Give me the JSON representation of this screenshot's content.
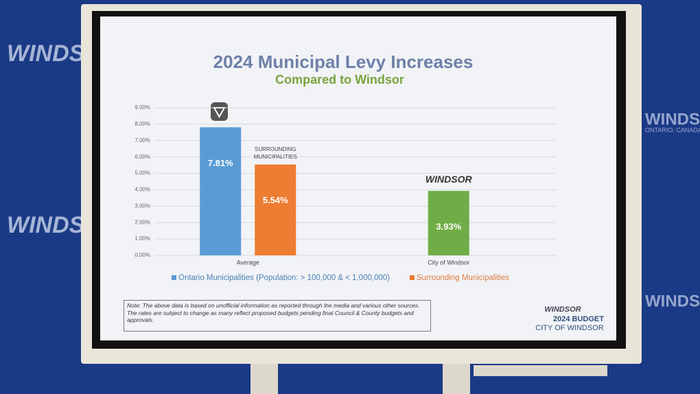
{
  "chart_data": {
    "type": "bar",
    "title": "2024 Municipal Levy Increases",
    "subtitle": "Compared to Windsor",
    "categories": [
      "Average",
      "City of Windsor"
    ],
    "series": [
      {
        "name": "Ontario Municipalities (Population: > 100,000 & < 1,000,000)",
        "color": "#5b9bd5",
        "values": [
          7.81,
          null
        ],
        "value_labels": [
          "7.81%",
          null
        ]
      },
      {
        "name": "Surrounding Municipalities",
        "color": "#ed7d31",
        "values": [
          5.54,
          null
        ],
        "value_labels": [
          "5.54%",
          null
        ]
      },
      {
        "color": "#70ad47",
        "values": [
          null,
          3.93
        ],
        "value_labels": [
          null,
          "3.93%"
        ]
      }
    ],
    "ylim": [
      0,
      9
    ],
    "yticks": [
      {
        "value": 0,
        "label": "0.00%"
      },
      {
        "value": 1,
        "label": "1.00%"
      },
      {
        "value": 2,
        "label": "2.00%"
      },
      {
        "value": 3,
        "label": "3.00%"
      },
      {
        "value": 4,
        "label": "4.00%"
      },
      {
        "value": 5,
        "label": "5.00%"
      },
      {
        "value": 6,
        "label": "6.00%"
      },
      {
        "value": 7,
        "label": "7.00%"
      },
      {
        "value": 8,
        "label": "8.00%"
      },
      {
        "value": 9,
        "label": "9.00%"
      }
    ],
    "grid": true,
    "annotations": [
      "SURROUNDING",
      "MUNICIPALITIES"
    ],
    "bar_logo": "WINDSOR"
  },
  "note": "Note: The above data is based on unofficial information as reported through the media and various other sources. The rates are subject to change as many reflect proposed budgets pending final Council & County budgets and approvals.",
  "footer": {
    "logo": "WINDSOR",
    "line1": "2024 BUDGET",
    "line2": "CITY OF WINDSOR"
  },
  "backdrop": {
    "logo": "WINDSOR",
    "place": "ONTARIO, CANADA"
  }
}
